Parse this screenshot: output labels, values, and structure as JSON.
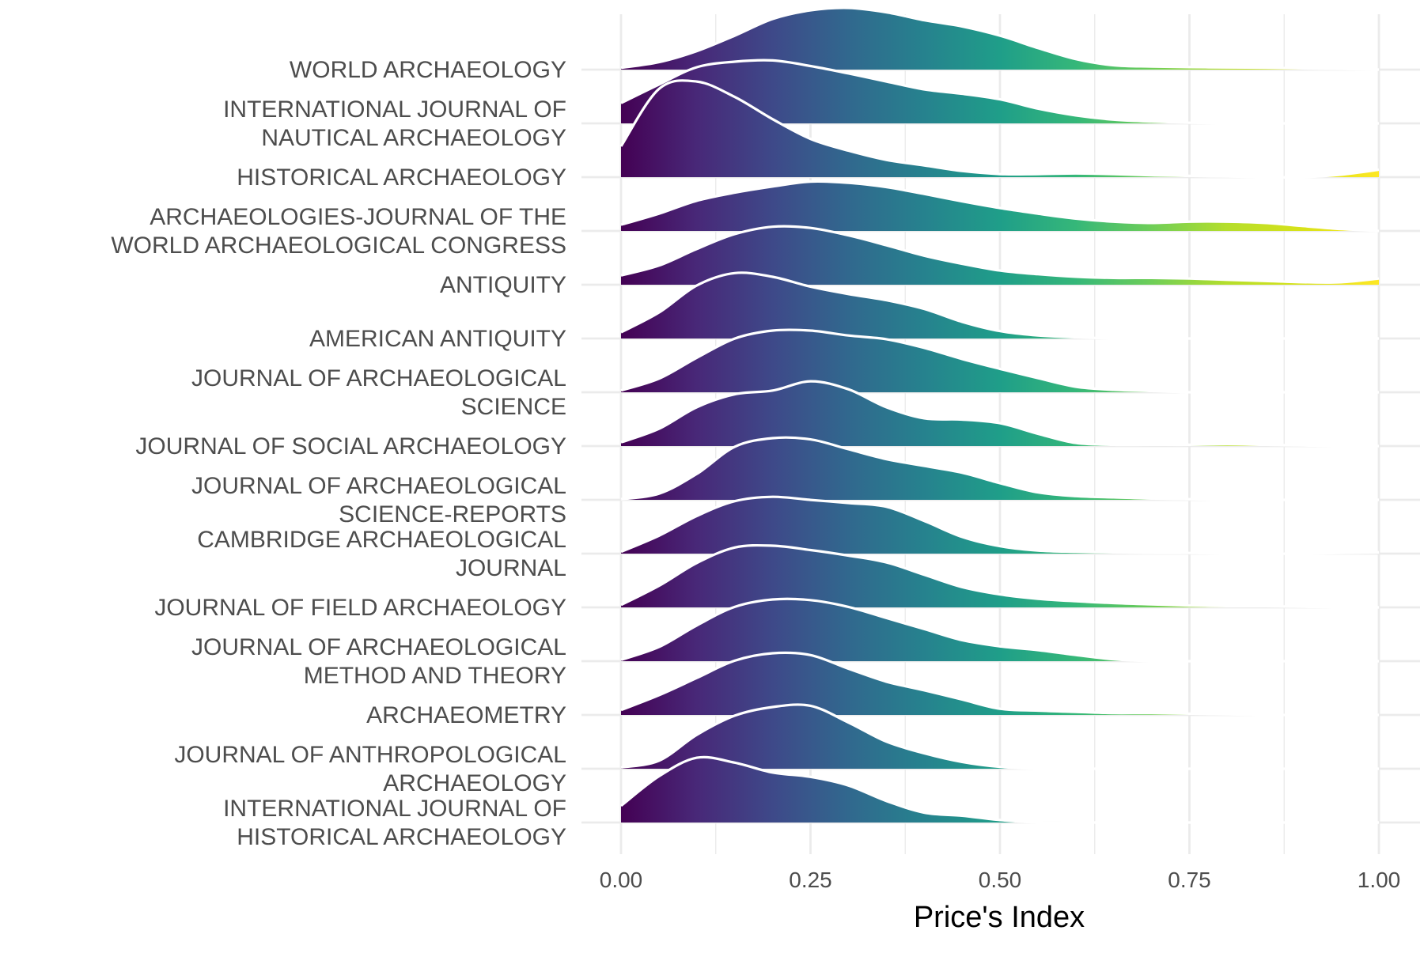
{
  "chart_data": {
    "type": "area",
    "subtype": "ridgeline-density",
    "xlabel": "Price's Index",
    "xlim": [
      0,
      1
    ],
    "x_ticks": [
      "0.00",
      "0.25",
      "0.50",
      "0.75",
      "1.00"
    ],
    "x_tick_values": [
      0,
      0.25,
      0.5,
      0.75,
      1
    ],
    "grid": true,
    "legend": "none",
    "fill_palette": "viridis (by x)",
    "grid_color": "#ebebeb",
    "density_x": [
      0,
      0.05,
      0.1,
      0.15,
      0.2,
      0.25,
      0.3,
      0.35,
      0.4,
      0.45,
      0.5,
      0.55,
      0.6,
      0.65,
      0.7,
      0.75,
      0.8,
      0.85,
      0.9,
      0.95,
      1.0
    ],
    "series": [
      {
        "name": "WORLD ARCHAEOLOGY",
        "label_lines": [
          "WORLD ARCHAEOLOGY"
        ],
        "values": [
          0.03,
          0.12,
          0.3,
          0.55,
          0.82,
          0.96,
          1.0,
          0.93,
          0.8,
          0.7,
          0.55,
          0.35,
          0.17,
          0.07,
          0.05,
          0.04,
          0.035,
          0.03,
          0.02,
          0.01,
          0.0
        ]
      },
      {
        "name": "INTERNATIONAL JOURNAL OF NAUTICAL ARCHAEOLOGY",
        "label_lines": [
          "INTERNATIONAL JOURNAL OF",
          "NAUTICAL ARCHAEOLOGY"
        ],
        "values": [
          0.33,
          0.63,
          0.91,
          1.0,
          1.02,
          0.93,
          0.81,
          0.68,
          0.55,
          0.48,
          0.39,
          0.24,
          0.13,
          0.06,
          0.03,
          0.01,
          0.0,
          0.0,
          0.0,
          0.0,
          0.0
        ]
      },
      {
        "name": "HISTORICAL ARCHAEOLOGY",
        "label_lines": [
          "HISTORICAL ARCHAEOLOGY"
        ],
        "values": [
          0.5,
          1.43,
          1.55,
          1.3,
          0.94,
          0.62,
          0.43,
          0.28,
          0.19,
          0.1,
          0.05,
          0.05,
          0.06,
          0.05,
          0.03,
          0.02,
          0.01,
          0.0,
          0.0,
          0.04,
          0.12
        ]
      },
      {
        "name": "ARCHAEOLOGIES-JOURNAL OF THE WORLD ARCHAEOLOGICAL CONGRESS",
        "label_lines": [
          "ARCHAEOLOGIES-JOURNAL OF THE",
          "WORLD ARCHAEOLOGICAL CONGRESS"
        ],
        "values": [
          0.1,
          0.28,
          0.49,
          0.62,
          0.72,
          0.8,
          0.78,
          0.71,
          0.6,
          0.48,
          0.37,
          0.28,
          0.2,
          0.15,
          0.13,
          0.15,
          0.15,
          0.13,
          0.08,
          0.03,
          0.0
        ]
      },
      {
        "name": "ANTIQUITY",
        "label_lines": [
          "ANTIQUITY"
        ],
        "values": [
          0.15,
          0.31,
          0.58,
          0.82,
          0.94,
          0.92,
          0.8,
          0.64,
          0.47,
          0.34,
          0.23,
          0.17,
          0.13,
          0.11,
          0.11,
          0.1,
          0.08,
          0.06,
          0.04,
          0.04,
          0.1
        ]
      },
      {
        "name": "AMERICAN ANTIQUITY",
        "label_lines": [
          "AMERICAN ANTIQUITY"
        ],
        "values": [
          0.1,
          0.42,
          0.86,
          1.06,
          1.0,
          0.84,
          0.72,
          0.62,
          0.48,
          0.27,
          0.12,
          0.05,
          0.02,
          0.0,
          0.0,
          0.0,
          0.0,
          0.0,
          0.0,
          0.0,
          0.0
        ]
      },
      {
        "name": "JOURNAL OF ARCHAEOLOGICAL SCIENCE",
        "label_lines": [
          "JOURNAL OF ARCHAEOLOGICAL",
          "SCIENCE"
        ],
        "values": [
          0.03,
          0.22,
          0.56,
          0.87,
          1.0,
          1.0,
          0.92,
          0.86,
          0.72,
          0.54,
          0.38,
          0.23,
          0.09,
          0.04,
          0.02,
          0.0,
          0.0,
          0.0,
          0.0,
          0.0,
          0.0
        ]
      },
      {
        "name": "JOURNAL OF SOCIAL ARCHAEOLOGY",
        "label_lines": [
          "JOURNAL OF SOCIAL ARCHAEOLOGY"
        ],
        "values": [
          0.06,
          0.28,
          0.63,
          0.84,
          0.9,
          1.05,
          0.92,
          0.63,
          0.45,
          0.43,
          0.37,
          0.2,
          0.05,
          0.02,
          0.02,
          0.02,
          0.03,
          0.02,
          0.01,
          0.0,
          0.0
        ]
      },
      {
        "name": "JOURNAL OF ARCHAEOLOGICAL SCIENCE-REPORTS",
        "label_lines": [
          "JOURNAL OF ARCHAEOLOGICAL",
          "SCIENCE-REPORTS"
        ],
        "values": [
          0.01,
          0.1,
          0.42,
          0.86,
          1.0,
          0.98,
          0.82,
          0.66,
          0.55,
          0.44,
          0.27,
          0.12,
          0.06,
          0.04,
          0.02,
          0.01,
          0.0,
          0.0,
          0.0,
          0.0,
          0.0
        ]
      },
      {
        "name": "CAMBRIDGE ARCHAEOLOGICAL JOURNAL",
        "label_lines": [
          "CAMBRIDGE ARCHAEOLOGICAL",
          "JOURNAL"
        ],
        "values": [
          0.03,
          0.29,
          0.61,
          0.85,
          0.92,
          0.87,
          0.82,
          0.76,
          0.53,
          0.27,
          0.12,
          0.05,
          0.03,
          0.02,
          0.01,
          0.01,
          0.0,
          0.0,
          0.0,
          0.01,
          0.02
        ]
      },
      {
        "name": "JOURNAL OF FIELD ARCHAEOLOGY",
        "label_lines": [
          "JOURNAL OF FIELD ARCHAEOLOGY"
        ],
        "values": [
          0.04,
          0.35,
          0.72,
          0.97,
          1.0,
          0.93,
          0.84,
          0.73,
          0.53,
          0.33,
          0.21,
          0.14,
          0.1,
          0.07,
          0.05,
          0.03,
          0.02,
          0.02,
          0.01,
          0.0,
          0.0
        ]
      },
      {
        "name": "JOURNAL OF ARCHAEOLOGICAL METHOD AND THEORY",
        "label_lines": [
          "JOURNAL OF ARCHAEOLOGICAL",
          "METHOD AND THEORY"
        ],
        "values": [
          0.02,
          0.23,
          0.58,
          0.88,
          1.0,
          0.99,
          0.88,
          0.7,
          0.52,
          0.34,
          0.24,
          0.18,
          0.1,
          0.03,
          0.0,
          0.0,
          0.0,
          0.0,
          0.0,
          0.0,
          0.0
        ]
      },
      {
        "name": "ARCHAEOMETRY",
        "label_lines": [
          "ARCHAEOMETRY"
        ],
        "values": [
          0.08,
          0.32,
          0.6,
          0.88,
          1.0,
          0.97,
          0.75,
          0.54,
          0.4,
          0.25,
          0.1,
          0.07,
          0.05,
          0.03,
          0.03,
          0.02,
          0.01,
          0.0,
          0.0,
          0.0,
          0.0
        ]
      },
      {
        "name": "JOURNAL OF ANTHROPOLOGICAL ARCHAEOLOGY",
        "label_lines": [
          "JOURNAL OF ANTHROPOLOGICAL",
          "ARCHAEOLOGY"
        ],
        "values": [
          0.02,
          0.13,
          0.55,
          0.86,
          1.0,
          1.02,
          0.75,
          0.44,
          0.25,
          0.11,
          0.03,
          0.0,
          0.0,
          0.0,
          0.0,
          0.0,
          0.0,
          0.0,
          0.0,
          0.0,
          0.0
        ]
      },
      {
        "name": "INTERNATIONAL JOURNAL OF HISTORICAL ARCHAEOLOGY",
        "label_lines": [
          "INTERNATIONAL JOURNAL OF",
          "HISTORICAL ARCHAEOLOGY"
        ],
        "values": [
          0.27,
          0.75,
          1.05,
          0.97,
          0.81,
          0.74,
          0.6,
          0.35,
          0.16,
          0.11,
          0.04,
          0.0,
          0.0,
          0.0,
          0.0,
          0.0,
          0.0,
          0.0,
          0.0,
          0.0,
          0.0
        ]
      }
    ]
  }
}
